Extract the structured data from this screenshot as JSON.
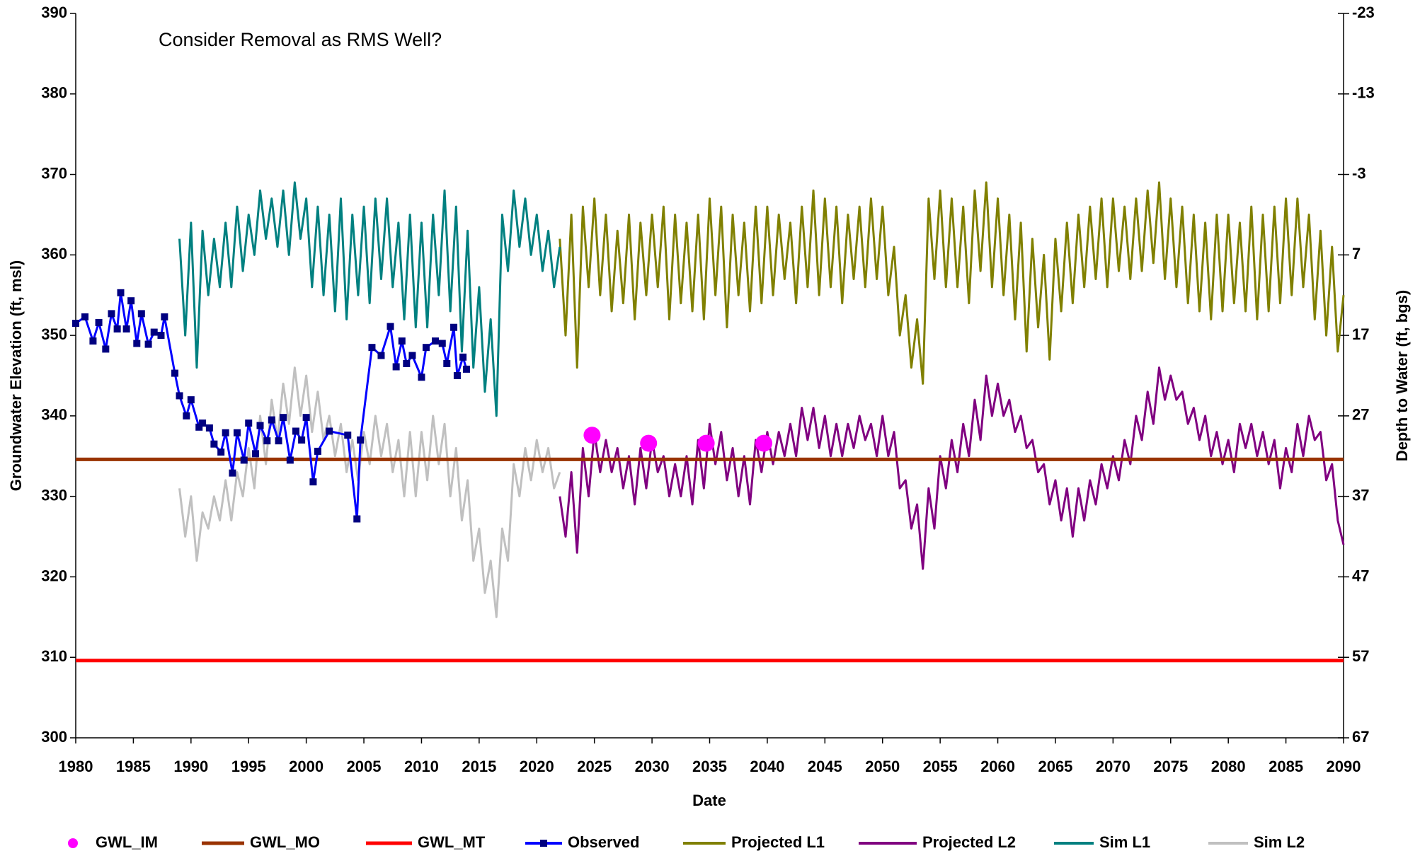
{
  "chart_data": {
    "type": "line",
    "annotations": [
      "Consider Removal as RMS Well?"
    ],
    "x_label": "Date",
    "y_label": "Groundwater Elevation (ft, msl)",
    "y2_label": "Depth to Water (ft, bgs)",
    "xlim": [
      1980,
      2090
    ],
    "xticks": [
      1980,
      1985,
      1990,
      1995,
      2000,
      2005,
      2010,
      2015,
      2020,
      2025,
      2030,
      2035,
      2040,
      2045,
      2050,
      2055,
      2060,
      2065,
      2070,
      2075,
      2080,
      2085,
      2090
    ],
    "ylim": [
      300,
      390
    ],
    "yticks": [
      300,
      310,
      320,
      330,
      340,
      350,
      360,
      370,
      380,
      390
    ],
    "y2lim": [
      67,
      -23
    ],
    "y2ticks": [
      67,
      57,
      47,
      37,
      27,
      17,
      7,
      -3,
      -13,
      -23
    ],
    "grid": false,
    "legend": "bottom",
    "series": [
      {
        "name": "GWL_IM",
        "color": "#ff00ff",
        "line": false,
        "marker": "circle",
        "x": [
          2024.8,
          2029.7,
          2034.7,
          2039.7
        ],
        "values": [
          337.6,
          336.6,
          336.6,
          336.6
        ]
      },
      {
        "name": "GWL_MO",
        "color": "#993300",
        "width": 5,
        "x": [
          1980,
          2090
        ],
        "values": [
          334.6,
          334.6
        ]
      },
      {
        "name": "GWL_MT",
        "color": "#ff0000",
        "width": 5,
        "x": [
          1980,
          2090
        ],
        "values": [
          309.6,
          309.6
        ]
      },
      {
        "name": "Observed",
        "color": "#0000ff",
        "marker": "square",
        "marker_color": "#000080",
        "x": [
          1980.0,
          1980.8,
          1981.5,
          1982.0,
          1982.6,
          1983.1,
          1983.6,
          1983.9,
          1984.4,
          1984.8,
          1985.3,
          1985.7,
          1986.3,
          1986.8,
          1987.4,
          1987.7,
          1988.6,
          1989.0,
          1989.6,
          1990.0,
          1990.7,
          1991.0,
          1991.6,
          1992.0,
          1992.6,
          1993.0,
          1993.6,
          1994.0,
          1994.6,
          1995.0,
          1995.6,
          1996.0,
          1996.6,
          1997.0,
          1997.6,
          1998.0,
          1998.6,
          1999.1,
          1999.6,
          2000.0,
          2000.6,
          2001.0,
          2002.0,
          2003.6,
          2004.4,
          2004.7,
          2005.7,
          2006.5,
          2007.3,
          2007.8,
          2008.3,
          2008.7,
          2009.2,
          2010.0,
          2010.4,
          2011.2,
          2011.8,
          2012.2,
          2012.8,
          2013.1,
          2013.6,
          2013.9
        ],
        "values": [
          351.5,
          352.3,
          349.3,
          351.6,
          348.3,
          352.7,
          350.8,
          355.3,
          350.8,
          354.3,
          349.0,
          352.7,
          348.9,
          350.4,
          350.0,
          352.3,
          345.3,
          342.5,
          340.0,
          342.0,
          338.6,
          339.1,
          338.5,
          336.5,
          335.5,
          337.9,
          332.9,
          337.9,
          334.5,
          339.1,
          335.3,
          338.8,
          336.9,
          339.5,
          336.9,
          339.8,
          334.5,
          338.1,
          337.0,
          339.8,
          331.8,
          335.6,
          338.1,
          337.6,
          327.2,
          337.0,
          348.5,
          347.5,
          351.1,
          346.1,
          349.3,
          346.5,
          347.5,
          344.8,
          348.5,
          349.3,
          349.0,
          346.5,
          351.0,
          345.0,
          347.3,
          345.8
        ]
      },
      {
        "name": "Projected L1",
        "color": "#808000",
        "x": [
          2022,
          2022.5,
          2023,
          2023.5,
          2024,
          2024.5,
          2025,
          2025.5,
          2026,
          2026.5,
          2027,
          2027.5,
          2028,
          2028.5,
          2029,
          2029.5,
          2030,
          2030.5,
          2031,
          2031.5,
          2032,
          2032.5,
          2033,
          2033.5,
          2034,
          2034.5,
          2035,
          2035.5,
          2036,
          2036.5,
          2037,
          2037.5,
          2038,
          2038.5,
          2039,
          2039.5,
          2040,
          2040.5,
          2041,
          2041.5,
          2042,
          2042.5,
          2043,
          2043.5,
          2044,
          2044.5,
          2045,
          2045.5,
          2046,
          2046.5,
          2047,
          2047.5,
          2048,
          2048.5,
          2049,
          2049.5,
          2050,
          2050.5,
          2051,
          2051.5,
          2052,
          2052.5,
          2053,
          2053.5,
          2054,
          2054.5,
          2055,
          2055.5,
          2056,
          2056.5,
          2057,
          2057.5,
          2058,
          2058.5,
          2059,
          2059.5,
          2060,
          2060.5,
          2061,
          2061.5,
          2062,
          2062.5,
          2063,
          2063.5,
          2064,
          2064.5,
          2065,
          2065.5,
          2066,
          2066.5,
          2067,
          2067.5,
          2068,
          2068.5,
          2069,
          2069.5,
          2070,
          2070.5,
          2071,
          2071.5,
          2072,
          2072.5,
          2073,
          2073.5,
          2074,
          2074.5,
          2075,
          2075.5,
          2076,
          2076.5,
          2077,
          2077.5,
          2078,
          2078.5,
          2079,
          2079.5,
          2080,
          2080.5,
          2081,
          2081.5,
          2082,
          2082.5,
          2083,
          2083.5,
          2084,
          2084.5,
          2085,
          2085.5,
          2086,
          2086.5,
          2087,
          2087.5,
          2088,
          2088.5,
          2089,
          2089.5,
          2090
        ],
        "values": [
          362,
          350,
          365,
          346,
          366,
          356,
          367,
          355,
          365,
          353,
          363,
          354,
          365,
          352,
          364,
          355,
          365,
          356,
          366,
          352,
          365,
          354,
          364,
          353,
          365,
          352,
          367,
          355,
          366,
          351,
          365,
          355,
          364,
          353,
          366,
          354,
          366,
          355,
          365,
          357,
          364,
          354,
          366,
          356,
          368,
          355,
          367,
          356,
          366,
          354,
          365,
          357,
          366,
          356,
          367,
          357,
          366,
          355,
          361,
          350,
          355,
          346,
          352,
          344,
          367,
          357,
          368,
          356,
          367,
          356,
          366,
          354,
          368,
          358,
          369,
          356,
          367,
          355,
          365,
          352,
          364,
          348,
          362,
          351,
          360,
          347,
          362,
          353,
          364,
          354,
          365,
          356,
          366,
          357,
          367,
          356,
          367,
          358,
          366,
          357,
          367,
          358,
          368,
          359,
          369,
          357,
          367,
          356,
          366,
          354,
          365,
          353,
          364,
          352,
          365,
          353,
          365,
          354,
          364,
          353,
          366,
          352,
          365,
          353,
          366,
          354,
          367,
          355,
          367,
          356,
          365,
          352,
          363,
          350,
          361,
          348,
          355
        ]
      },
      {
        "name": "Projected L2",
        "color": "#800080",
        "x": [
          2022,
          2022.5,
          2023,
          2023.5,
          2024,
          2024.5,
          2025,
          2025.5,
          2026,
          2026.5,
          2027,
          2027.5,
          2028,
          2028.5,
          2029,
          2029.5,
          2030,
          2030.5,
          2031,
          2031.5,
          2032,
          2032.5,
          2033,
          2033.5,
          2034,
          2034.5,
          2035,
          2035.5,
          2036,
          2036.5,
          2037,
          2037.5,
          2038,
          2038.5,
          2039,
          2039.5,
          2040,
          2040.5,
          2041,
          2041.5,
          2042,
          2042.5,
          2043,
          2043.5,
          2044,
          2044.5,
          2045,
          2045.5,
          2046,
          2046.5,
          2047,
          2047.5,
          2048,
          2048.5,
          2049,
          2049.5,
          2050,
          2050.5,
          2051,
          2051.5,
          2052,
          2052.5,
          2053,
          2053.5,
          2054,
          2054.5,
          2055,
          2055.5,
          2056,
          2056.5,
          2057,
          2057.5,
          2058,
          2058.5,
          2059,
          2059.5,
          2060,
          2060.5,
          2061,
          2061.5,
          2062,
          2062.5,
          2063,
          2063.5,
          2064,
          2064.5,
          2065,
          2065.5,
          2066,
          2066.5,
          2067,
          2067.5,
          2068,
          2068.5,
          2069,
          2069.5,
          2070,
          2070.5,
          2071,
          2071.5,
          2072,
          2072.5,
          2073,
          2073.5,
          2074,
          2074.5,
          2075,
          2075.5,
          2076,
          2076.5,
          2077,
          2077.5,
          2078,
          2078.5,
          2079,
          2079.5,
          2080,
          2080.5,
          2081,
          2081.5,
          2082,
          2082.5,
          2083,
          2083.5,
          2084,
          2084.5,
          2085,
          2085.5,
          2086,
          2086.5,
          2087,
          2087.5,
          2088,
          2088.5,
          2089,
          2089.5,
          2090
        ],
        "values": [
          330,
          325,
          333,
          323,
          336,
          330,
          338,
          333,
          337,
          333,
          336,
          331,
          335,
          329,
          336,
          331,
          337,
          333,
          335,
          330,
          334,
          330,
          335,
          329,
          337,
          331,
          339,
          334,
          338,
          332,
          336,
          330,
          335,
          329,
          337,
          333,
          338,
          334,
          338,
          335,
          339,
          335,
          341,
          337,
          341,
          336,
          340,
          335,
          339,
          335,
          339,
          336,
          340,
          337,
          339,
          335,
          340,
          335,
          338,
          331,
          332,
          326,
          329,
          321,
          331,
          326,
          335,
          331,
          337,
          333,
          339,
          335,
          342,
          337,
          345,
          340,
          344,
          340,
          342,
          338,
          340,
          336,
          337,
          333,
          334,
          329,
          332,
          327,
          331,
          325,
          331,
          327,
          332,
          329,
          334,
          331,
          335,
          332,
          337,
          334,
          340,
          337,
          343,
          339,
          346,
          342,
          345,
          342,
          343,
          339,
          341,
          337,
          340,
          335,
          338,
          334,
          337,
          333,
          339,
          336,
          339,
          335,
          338,
          334,
          337,
          331,
          336,
          333,
          339,
          335,
          340,
          337,
          338,
          332,
          334,
          327,
          324
        ]
      },
      {
        "name": "Sim L1",
        "color": "#008080",
        "x": [
          1989,
          1989.5,
          1990,
          1990.5,
          1991,
          1991.5,
          1992,
          1992.5,
          1993,
          1993.5,
          1994,
          1994.5,
          1995,
          1995.5,
          1996,
          1996.5,
          1997,
          1997.5,
          1998,
          1998.5,
          1999,
          1999.5,
          2000,
          2000.5,
          2001,
          2001.5,
          2002,
          2002.5,
          2003,
          2003.5,
          2004,
          2004.5,
          2005,
          2005.5,
          2006,
          2006.5,
          2007,
          2007.5,
          2008,
          2008.5,
          2009,
          2009.5,
          2010,
          2010.5,
          2011,
          2011.5,
          2012,
          2012.5,
          2013,
          2013.5,
          2014,
          2014.5,
          2015,
          2015.5,
          2016,
          2016.5,
          2017,
          2017.5,
          2018,
          2018.5,
          2019,
          2019.5,
          2020,
          2020.5,
          2021,
          2021.5,
          2022
        ],
        "values": [
          362,
          350,
          364,
          346,
          363,
          355,
          362,
          356,
          364,
          356,
          366,
          358,
          365,
          360,
          368,
          362,
          367,
          361,
          368,
          360,
          369,
          362,
          367,
          356,
          366,
          355,
          365,
          353,
          367,
          352,
          365,
          355,
          366,
          354,
          367,
          357,
          367,
          356,
          364,
          352,
          365,
          351,
          364,
          351,
          365,
          355,
          368,
          353,
          366,
          348,
          363,
          346,
          356,
          343,
          352,
          340,
          365,
          358,
          368,
          361,
          367,
          360,
          365,
          358,
          363,
          356,
          361
        ]
      },
      {
        "name": "Sim L2",
        "color": "#c0c0c0",
        "x": [
          1989,
          1989.5,
          1990,
          1990.5,
          1991,
          1991.5,
          1992,
          1992.5,
          1993,
          1993.5,
          1994,
          1994.5,
          1995,
          1995.5,
          1996,
          1996.5,
          1997,
          1997.5,
          1998,
          1998.5,
          1999,
          1999.5,
          2000,
          2000.5,
          2001,
          2001.5,
          2002,
          2002.5,
          2003,
          2003.5,
          2004,
          2004.5,
          2005,
          2005.5,
          2006,
          2006.5,
          2007,
          2007.5,
          2008,
          2008.5,
          2009,
          2009.5,
          2010,
          2010.5,
          2011,
          2011.5,
          2012,
          2012.5,
          2013,
          2013.5,
          2014,
          2014.5,
          2015,
          2015.5,
          2016,
          2016.5,
          2017,
          2017.5,
          2018,
          2018.5,
          2019,
          2019.5,
          2020,
          2020.5,
          2021,
          2021.5,
          2022
        ],
        "values": [
          331,
          325,
          330,
          322,
          328,
          326,
          330,
          327,
          332,
          327,
          333,
          330,
          336,
          331,
          340,
          334,
          342,
          337,
          344,
          339,
          346,
          340,
          345,
          338,
          343,
          337,
          340,
          335,
          339,
          333,
          337,
          332,
          338,
          334,
          340,
          335,
          339,
          333,
          337,
          330,
          338,
          330,
          338,
          332,
          340,
          334,
          339,
          330,
          336,
          327,
          332,
          322,
          326,
          318,
          322,
          315,
          326,
          322,
          334,
          330,
          336,
          332,
          337,
          333,
          336,
          331,
          333
        ]
      }
    ]
  }
}
